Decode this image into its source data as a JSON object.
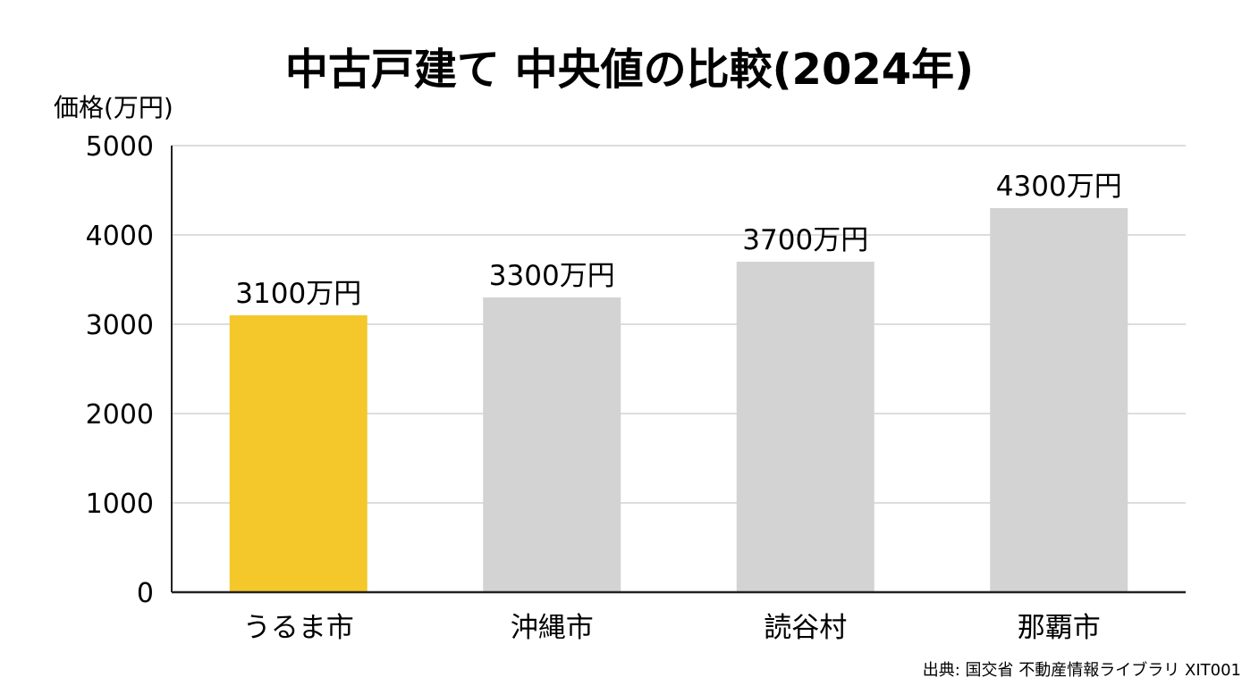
{
  "chart_data": {
    "type": "bar",
    "title": "中古戸建て 中央値の比較(2024年)",
    "ylabel": "価格(万円)",
    "xlabel": "",
    "ylim": [
      0,
      5000
    ],
    "yticks": [
      0,
      1000,
      2000,
      3000,
      4000,
      5000
    ],
    "categories": [
      "うるま市",
      "沖縄市",
      "読谷村",
      "那覇市"
    ],
    "values": [
      3100,
      3300,
      3700,
      4300
    ],
    "data_labels": [
      "3100万円",
      "3300万円",
      "3700万円",
      "4300万円"
    ],
    "bar_colors": [
      "#F4C82A",
      "#D3D3D3",
      "#D3D3D3",
      "#D3D3D3"
    ],
    "grid": true,
    "gridline_color": "#DDDDDD",
    "axis_color": "#222222",
    "legend": "none"
  },
  "source": "出典: 国交省 不動産情報ライブラリ XIT001"
}
